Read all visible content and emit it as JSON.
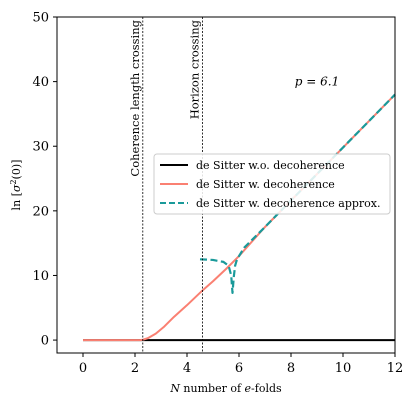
{
  "chart_data": {
    "type": "line",
    "xlabel": "N number of e-folds",
    "xlabel_parts": {
      "var": "N",
      "pre": " number of ",
      "e": "e",
      "post": "-folds"
    },
    "ylabel": "ln [σ²(0)]",
    "ylabel_parts": {
      "pre": "ln [",
      "sigma": "σ",
      "sup": "2",
      "post": "(0)]"
    },
    "xlim": [
      -1,
      12
    ],
    "ylim": [
      -2,
      50
    ],
    "xticks": [
      0,
      2,
      4,
      6,
      8,
      10,
      12
    ],
    "yticks": [
      0,
      10,
      20,
      30,
      40,
      50
    ],
    "grid": false,
    "legend_position": "center-right",
    "annotation": {
      "text": "p = 6.1",
      "x": 9,
      "y": 40
    },
    "vertical_lines": [
      {
        "x": 2.3,
        "label": "Coherence length crossing"
      },
      {
        "x": 4.6,
        "label": "Horizon crossing"
      }
    ],
    "series": [
      {
        "name": "de Sitter w.o. decoherence",
        "color": "#000000",
        "style": "solid",
        "x": [
          0,
          12
        ],
        "y": [
          0,
          0
        ]
      },
      {
        "name": "de Sitter w. decoherence",
        "color": "#fa8072",
        "style": "solid",
        "x": [
          0,
          2.2,
          2.3,
          2.5,
          2.8,
          3.1,
          3.5,
          4.0,
          4.6,
          5.0,
          5.5,
          6.0,
          7.0,
          8.0,
          9.0,
          10.0,
          11.0,
          12.0
        ],
        "y": [
          0,
          0,
          0.05,
          0.3,
          1.0,
          2.0,
          3.6,
          5.4,
          7.7,
          9.1,
          11.0,
          13.0,
          17.5,
          21.6,
          25.7,
          29.8,
          33.9,
          38.0
        ]
      },
      {
        "name": "de Sitter w. decoherence approx.",
        "color": "#1a9a9a",
        "style": "dashed",
        "x": [
          4.5,
          5.0,
          5.4,
          5.6,
          5.7,
          5.75,
          5.8,
          5.85,
          5.9,
          6.0,
          6.2,
          6.5,
          7.0,
          8.0,
          9.0,
          10.0,
          11.0,
          12.0
        ],
        "y": [
          12.5,
          12.4,
          12.1,
          11.5,
          10.0,
          7.3,
          9.8,
          11.5,
          12.2,
          13.0,
          14.3,
          15.5,
          17.5,
          21.6,
          25.7,
          29.8,
          33.9,
          38.0
        ]
      }
    ]
  }
}
